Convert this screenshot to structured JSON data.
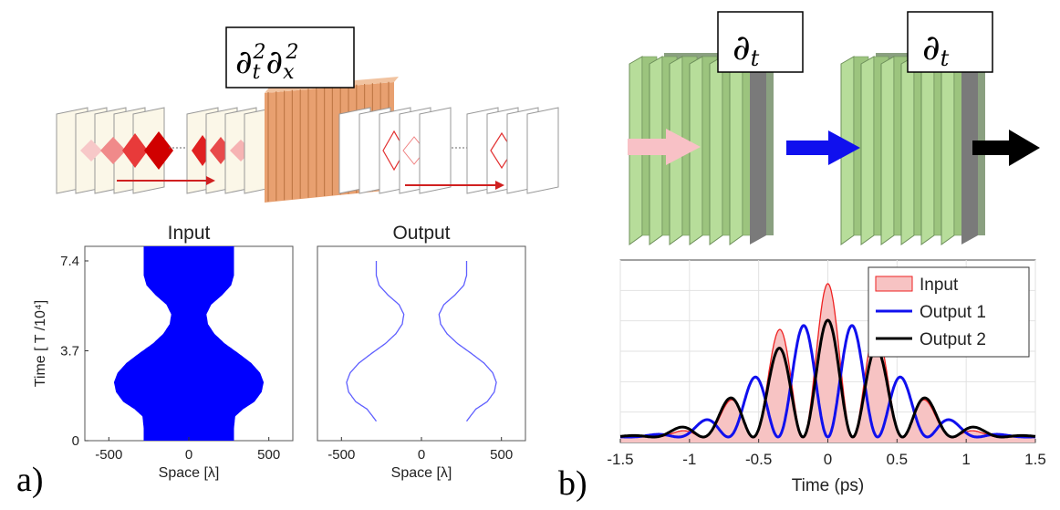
{
  "panel_a": {
    "label": "a)",
    "operator": "∂²ₜ∂²ₓ",
    "operator_parts": {
      "d1": "∂",
      "sub1": "t",
      "sup1": "2",
      "d2": "∂",
      "sub2": "x",
      "sup2": "2"
    }
  },
  "panel_b": {
    "label": "b)",
    "operator_1": {
      "d": "∂",
      "sub": "t"
    },
    "operator_2": {
      "d": "∂",
      "sub": "t"
    }
  },
  "chart_data": [
    {
      "type": "area",
      "title": "Input",
      "xlabel": "Space [λ]",
      "ylabel": "Time [ T /10⁴]",
      "xlim": [
        -650,
        650
      ],
      "ylim": [
        0,
        8.0
      ],
      "xticks": [
        -500,
        0,
        500
      ],
      "xtick_labels": [
        "-500",
        "0",
        "500"
      ],
      "yticks": [
        0,
        3.7,
        7.4
      ],
      "ytick_labels": [
        "0",
        "3.7",
        "7.4"
      ],
      "grid": false,
      "color": "#0000ff",
      "boundary_halfwidth": {
        "t": [
          0,
          0.5,
          1.0,
          1.3,
          1.6,
          2.0,
          2.4,
          2.8,
          3.2,
          3.6,
          4.0,
          4.4,
          4.8,
          5.2,
          5.6,
          6.0,
          6.4,
          6.8,
          7.1,
          7.4,
          8.0
        ],
        "x": [
          282,
          282,
          290,
          340,
          410,
          455,
          468,
          445,
          390,
          310,
          225,
          160,
          120,
          110,
          140,
          210,
          265,
          282,
          282,
          282,
          282
        ]
      }
    },
    {
      "type": "line",
      "title": "Output",
      "xlabel": "Space [λ]",
      "ylabel": "",
      "xlim": [
        -650,
        650
      ],
      "ylim": [
        0,
        8.0
      ],
      "xticks": [
        -500,
        0,
        500
      ],
      "xtick_labels": [
        "-500",
        "0",
        "500"
      ],
      "grid": false,
      "color": "#2a2aff",
      "curve_halfwidth": {
        "t": [
          0.8,
          1.3,
          1.6,
          2.0,
          2.4,
          2.8,
          3.2,
          3.6,
          4.0,
          4.4,
          4.8,
          5.2,
          5.6,
          6.0,
          6.4,
          6.8,
          7.2,
          7.4
        ],
        "x": [
          282,
          340,
          410,
          455,
          468,
          445,
          390,
          310,
          225,
          160,
          120,
          110,
          140,
          210,
          265,
          282,
          282,
          282
        ]
      }
    },
    {
      "type": "line",
      "title": "",
      "xlabel": "Time (ps)",
      "ylabel": "",
      "xlim": [
        -1.5,
        1.5
      ],
      "ylim": [
        0,
        1.0
      ],
      "xticks": [
        -1.5,
        -1,
        -0.5,
        0,
        0.5,
        1,
        1.5
      ],
      "xtick_labels": [
        "-1.5",
        "-1",
        "-0.5",
        "0",
        "0.5",
        "1",
        "1.5"
      ],
      "grid": true,
      "legend_position": "top-right",
      "series": [
        {
          "name": "Input",
          "kind": "area",
          "color": "#ee2222",
          "fill": "#f7c3c3",
          "envelope_center": 0,
          "envelope_sigma": 0.42,
          "peak": 0.84,
          "period": 0.36,
          "phase": 0,
          "baseline": 0.03
        },
        {
          "name": "Output 1",
          "kind": "line",
          "color": "#1010ee",
          "envelope_center": 0,
          "envelope_sigma": 0.45,
          "peak": 0.66,
          "period": 0.36,
          "phase": 0.5,
          "baseline": 0.03
        },
        {
          "name": "Output 2",
          "kind": "line",
          "color": "#000000",
          "envelope_center": 0,
          "envelope_sigma": 0.48,
          "peak": 0.64,
          "period": 0.36,
          "phase": 1.0,
          "baseline": 0.03
        }
      ]
    }
  ]
}
